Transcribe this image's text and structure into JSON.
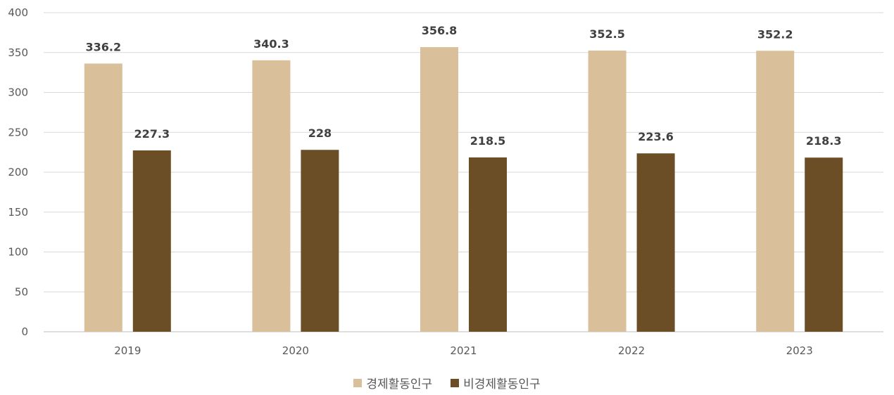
{
  "chart_data": {
    "type": "bar",
    "categories": [
      "2019",
      "2020",
      "2021",
      "2022",
      "2023"
    ],
    "series": [
      {
        "name": "경제활동인구",
        "values": [
          336.2,
          340.3,
          356.8,
          352.5,
          352.2
        ],
        "color": "#d9c09a",
        "labels": [
          "336.2",
          "340.3",
          "356.8",
          "352.5",
          "352.2"
        ]
      },
      {
        "name": "비경제활동인구",
        "values": [
          227.3,
          228,
          218.5,
          223.6,
          218.3
        ],
        "color": "#6b4e25",
        "labels": [
          "227.3",
          "228",
          "218.5",
          "223.6",
          "218.3"
        ]
      }
    ],
    "ylim": [
      0,
      400
    ],
    "yticks": [
      "0",
      "50",
      "100",
      "150",
      "200",
      "250",
      "300",
      "350",
      "400"
    ],
    "grid": true,
    "legend_position": "bottom"
  }
}
